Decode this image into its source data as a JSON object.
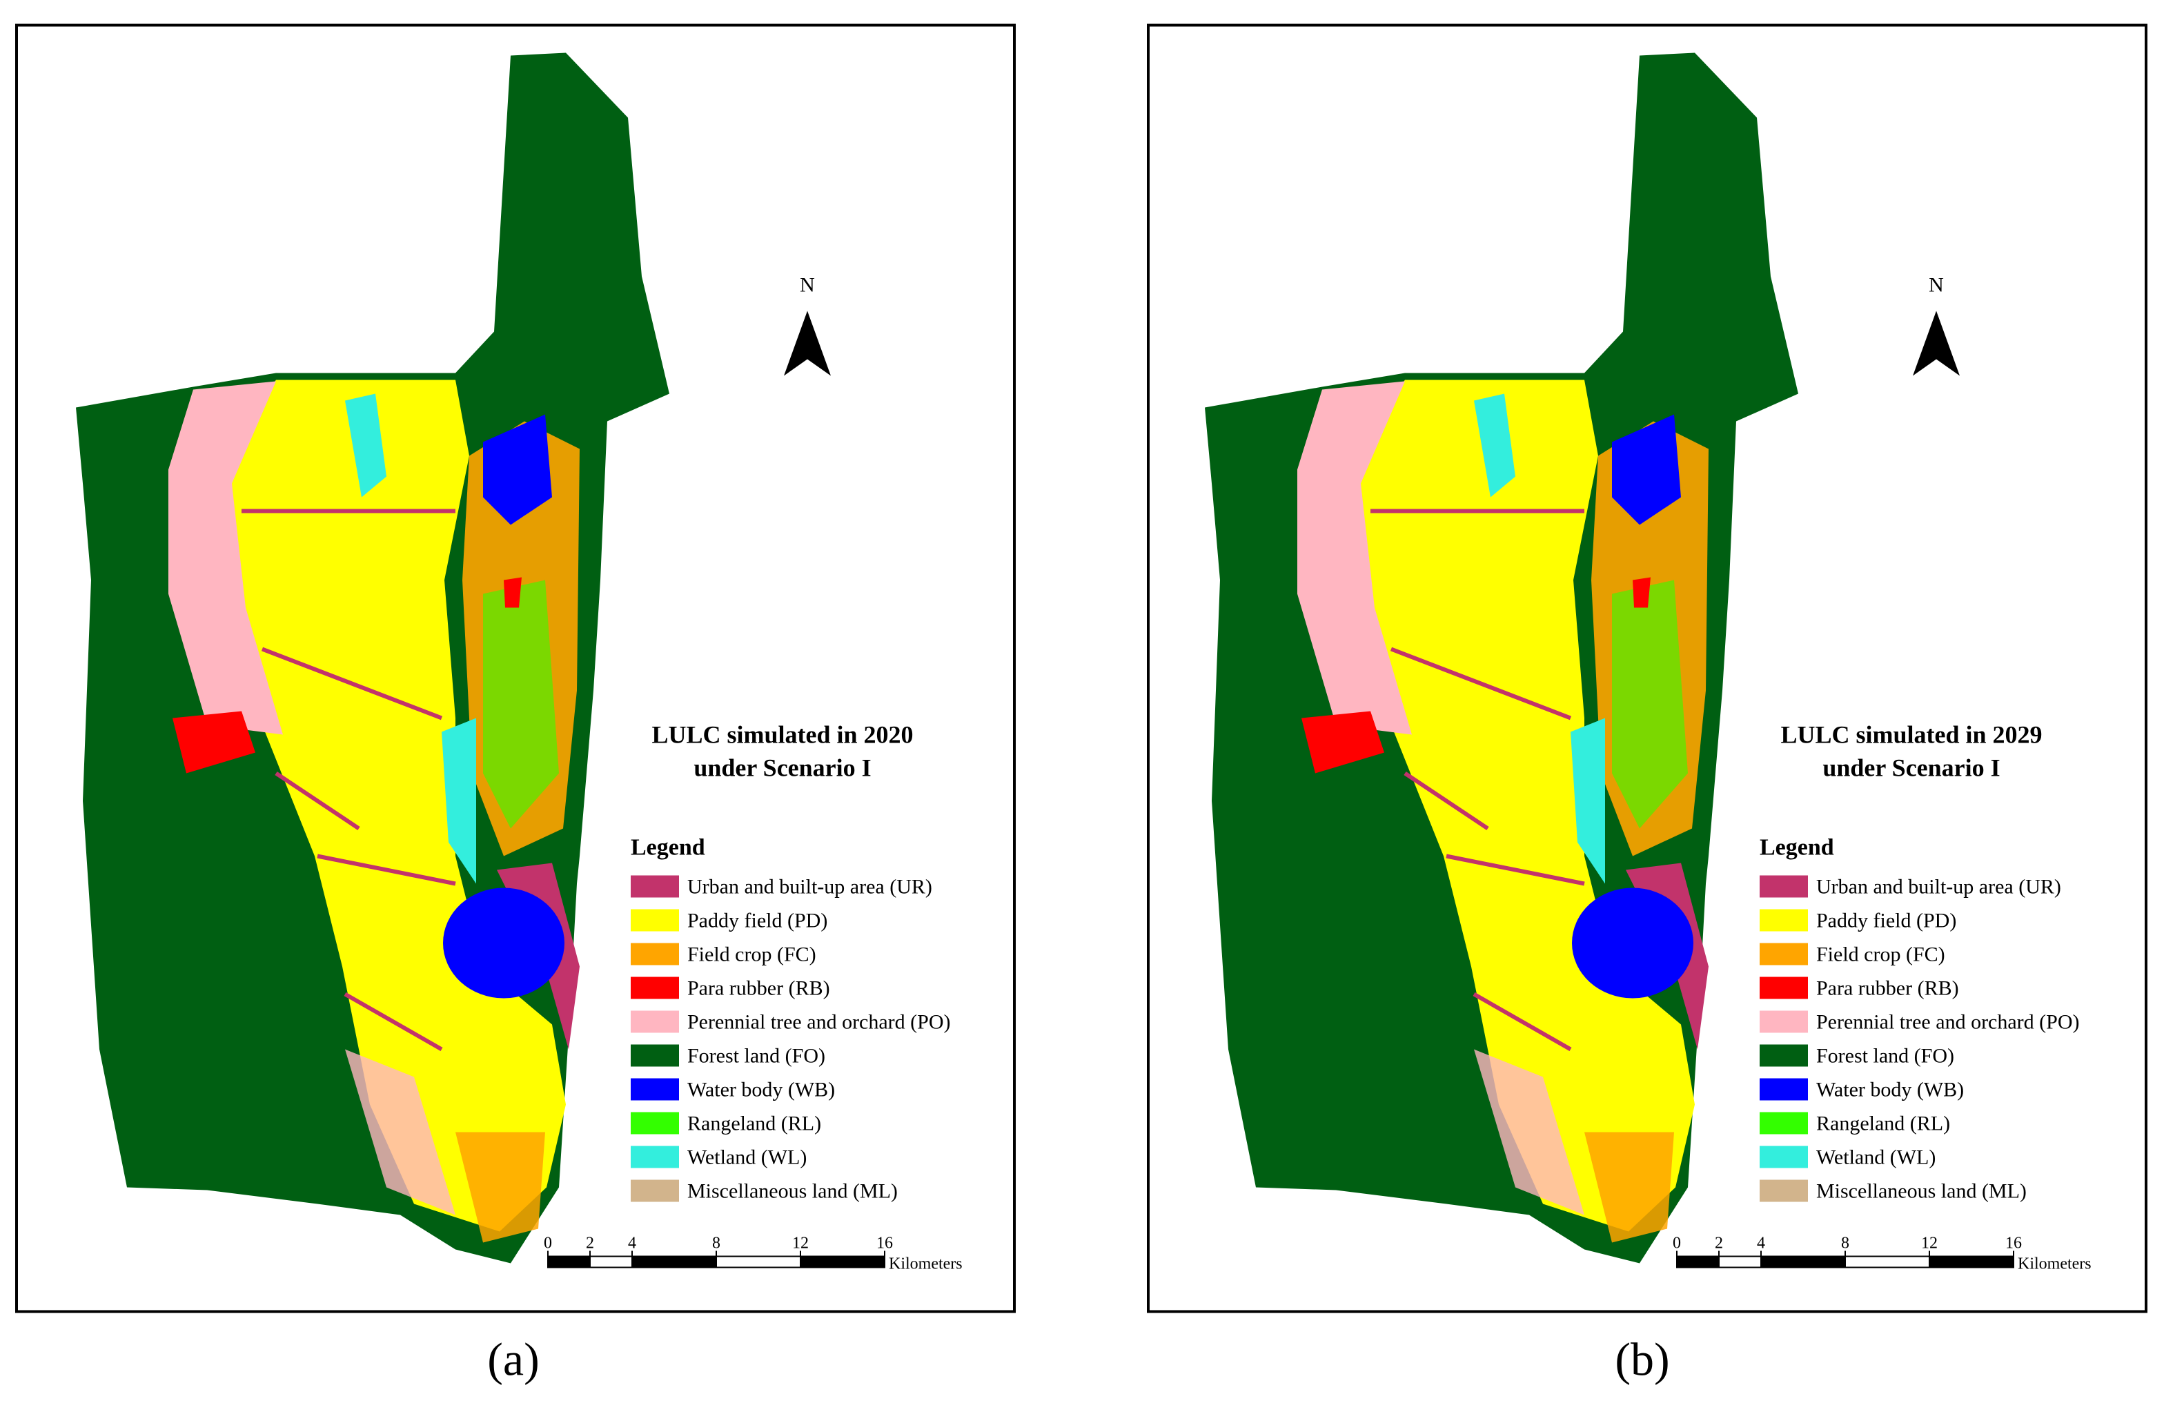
{
  "panels": [
    {
      "title": [
        "LULC simulated in 2020",
        "under Scenario I"
      ],
      "north": "N",
      "legend": {
        "title": "Legend",
        "items": [
          {
            "label": "Urban and built-up area (UR)",
            "color": "#c2336b"
          },
          {
            "label": "Paddy field (PD)",
            "color": "#ffff00"
          },
          {
            "label": "Field crop (FC)",
            "color": "#ffa500"
          },
          {
            "label": "Para rubber (RB)",
            "color": "#ff0000"
          },
          {
            "label": "Perennial tree and orchard (PO)",
            "color": "#ffb6c1"
          },
          {
            "label": "Forest land (FO)",
            "color": "#005f12"
          },
          {
            "label": "Water body (WB)",
            "color": "#0000ff"
          },
          {
            "label": "Rangeland (RL)",
            "color": "#33ff00"
          },
          {
            "label": "Wetland (WL)",
            "color": "#33eedd"
          },
          {
            "label": "Miscellaneous land (ML)",
            "color": "#d2b48c"
          }
        ]
      },
      "scale_bar": {
        "ticks": [
          0,
          2,
          4,
          8,
          12,
          16
        ],
        "unit": "Kilometers"
      },
      "caption": "(a)"
    },
    {
      "title": [
        "LULC simulated in 2029",
        "under Scenario I"
      ],
      "north": "N",
      "legend": {
        "title": "Legend",
        "items": [
          {
            "label": "Urban and built-up area (UR)",
            "color": "#c2336b"
          },
          {
            "label": "Paddy field (PD)",
            "color": "#ffff00"
          },
          {
            "label": "Field crop (FC)",
            "color": "#ffa500"
          },
          {
            "label": "Para rubber (RB)",
            "color": "#ff0000"
          },
          {
            "label": "Perennial tree and orchard (PO)",
            "color": "#ffb6c1"
          },
          {
            "label": "Forest land (FO)",
            "color": "#005f12"
          },
          {
            "label": "Water body (WB)",
            "color": "#0000ff"
          },
          {
            "label": "Rangeland (RL)",
            "color": "#33ff00"
          },
          {
            "label": "Wetland (WL)",
            "color": "#33eedd"
          },
          {
            "label": "Miscellaneous land (ML)",
            "color": "#d2b48c"
          }
        ]
      },
      "scale_bar": {
        "ticks": [
          0,
          2,
          4,
          8,
          12,
          16
        ],
        "unit": "Kilometers"
      },
      "caption": "(b)"
    }
  ]
}
